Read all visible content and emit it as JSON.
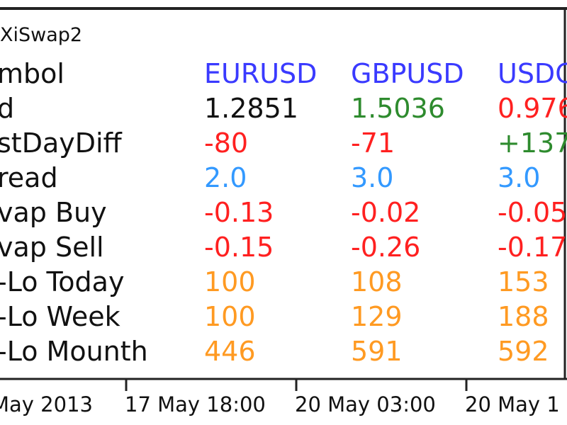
{
  "panel": {
    "title": "XiSwap2",
    "header": {
      "label": "mbol",
      "cells": [
        "EURUSD",
        "GBPUSD",
        "USDC"
      ],
      "colors": [
        "#3a3aff",
        "#3a3aff",
        "#3a3aff"
      ]
    },
    "rows": [
      {
        "label": "d",
        "cells": [
          "1.2851",
          "1.5036",
          "0.976"
        ],
        "colors": [
          "#111111",
          "#2e8b2e",
          "#ff2020"
        ]
      },
      {
        "label": "stDayDiff",
        "cells": [
          "-80",
          "-71",
          "+137"
        ],
        "colors": [
          "#ff2020",
          "#ff2020",
          "#2e8b2e"
        ]
      },
      {
        "label": "read",
        "cells": [
          "2.0",
          "3.0",
          "3.0"
        ],
        "colors": [
          "#3399ff",
          "#3399ff",
          "#3399ff"
        ]
      },
      {
        "label": "vap Buy",
        "cells": [
          "-0.13",
          "-0.02",
          "-0.05"
        ],
        "colors": [
          "#ff2020",
          "#ff2020",
          "#ff2020"
        ]
      },
      {
        "label": "vap Sell",
        "cells": [
          "-0.15",
          "-0.26",
          "-0.17"
        ],
        "colors": [
          "#ff2020",
          "#ff2020",
          "#ff2020"
        ]
      },
      {
        "label": "-Lo Today",
        "cells": [
          "100",
          "108",
          "153"
        ],
        "colors": [
          "#ff9a22",
          "#ff9a22",
          "#ff9a22"
        ]
      },
      {
        "label": "-Lo Week",
        "cells": [
          "100",
          "129",
          "188"
        ],
        "colors": [
          "#ff9a22",
          "#ff9a22",
          "#ff9a22"
        ]
      },
      {
        "label": "-Lo Mounth",
        "cells": [
          "446",
          "591",
          "592"
        ],
        "colors": [
          "#ff9a22",
          "#ff9a22",
          "#ff9a22"
        ]
      }
    ]
  },
  "timeline": {
    "labels": [
      "May 2013",
      "17 May 18:00",
      "20 May 03:00",
      "20 May 1"
    ]
  }
}
